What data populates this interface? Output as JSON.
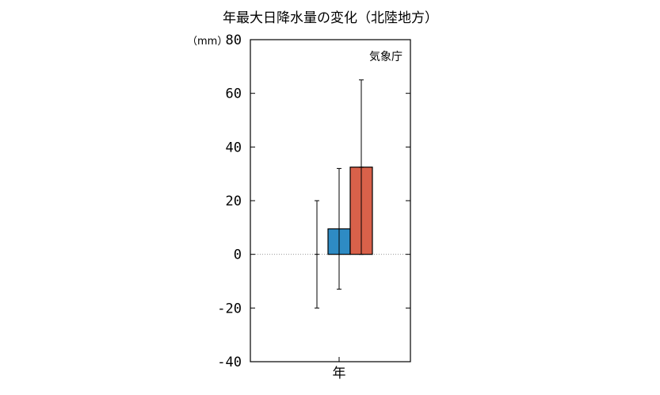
{
  "chart_data": {
    "type": "bar",
    "title": "年最大日降水量の変化（北陸地方）",
    "unit_label": "（mm）",
    "source_label": "気象庁",
    "categories": [
      "年"
    ],
    "ylim": [
      -40,
      80
    ],
    "yticks": [
      80,
      60,
      40,
      20,
      0,
      -20,
      -40
    ],
    "grid": false,
    "zero_line": true,
    "series": [
      {
        "values": [
          0
        ],
        "error": [
          [
            -20,
            20
          ]
        ],
        "color": "#ffffff",
        "no_bar": true
      },
      {
        "values": [
          9.5
        ],
        "error": [
          [
            -13,
            32
          ]
        ],
        "color": "#2e8bc4"
      },
      {
        "values": [
          32.5
        ],
        "error": [
          [
            0,
            65
          ]
        ],
        "color": "#d9614a"
      }
    ]
  }
}
